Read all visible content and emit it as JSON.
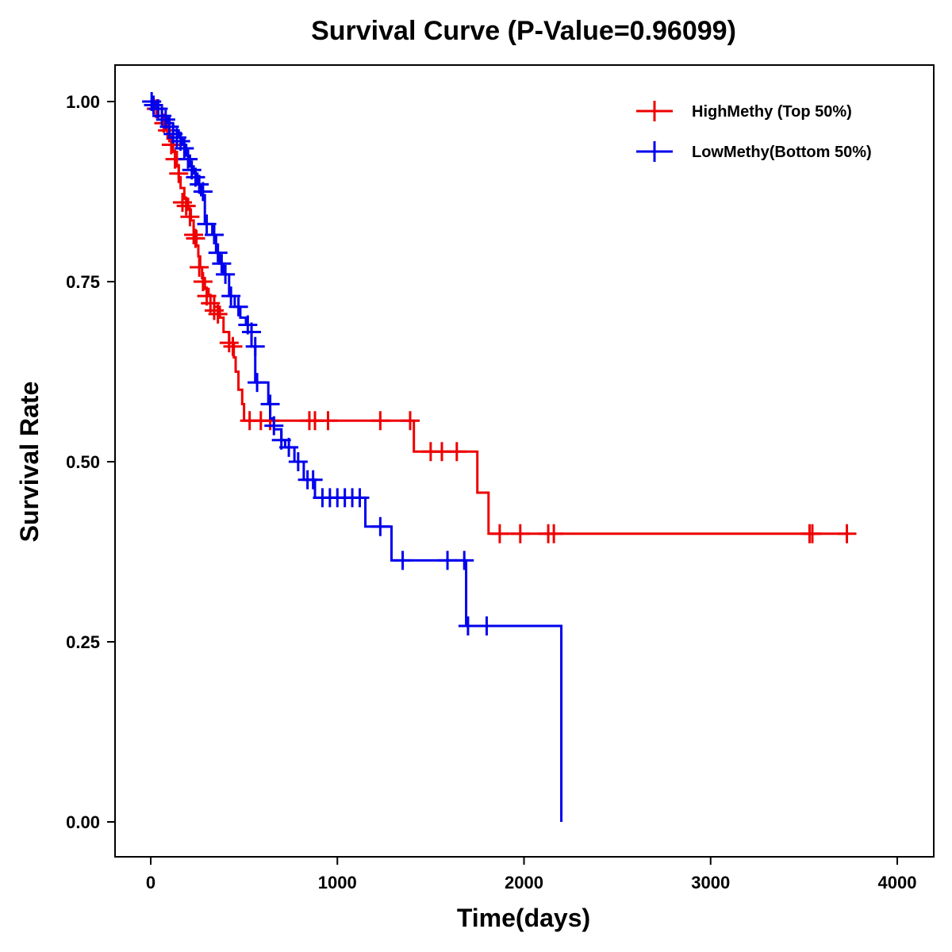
{
  "chart_data": {
    "type": "line",
    "title": "Survival Curve (P-Value=0.96099)",
    "xlabel": "Time(days)",
    "ylabel": "Survival Rate",
    "xlim": [
      -190,
      4200
    ],
    "ylim": [
      -0.048,
      1.05
    ],
    "xticks": [
      0,
      1000,
      2000,
      3000,
      4000
    ],
    "xtick_labels": [
      "0",
      "1000",
      "2000",
      "3000",
      "4000"
    ],
    "yticks": [
      0,
      0.25,
      0.5,
      0.75,
      1.0
    ],
    "ytick_labels": [
      "0.00",
      "0.25",
      "0.50",
      "0.75",
      "1.00"
    ],
    "grid": false,
    "legend_position": "top-right",
    "series": [
      {
        "name": "HighMethy (Top 50%)",
        "color": "#ee0000",
        "steps": [
          [
            0,
            1.0
          ],
          [
            20,
            0.99
          ],
          [
            40,
            0.98
          ],
          [
            60,
            0.97
          ],
          [
            80,
            0.96
          ],
          [
            100,
            0.945
          ],
          [
            120,
            0.93
          ],
          [
            140,
            0.91
          ],
          [
            150,
            0.895
          ],
          [
            160,
            0.88
          ],
          [
            180,
            0.865
          ],
          [
            200,
            0.85
          ],
          [
            215,
            0.835
          ],
          [
            230,
            0.82
          ],
          [
            245,
            0.8
          ],
          [
            255,
            0.785
          ],
          [
            265,
            0.77
          ],
          [
            275,
            0.755
          ],
          [
            290,
            0.74
          ],
          [
            310,
            0.73
          ],
          [
            340,
            0.715
          ],
          [
            370,
            0.7
          ],
          [
            390,
            0.68
          ],
          [
            420,
            0.665
          ],
          [
            445,
            0.645
          ],
          [
            455,
            0.625
          ],
          [
            470,
            0.6
          ],
          [
            490,
            0.58
          ],
          [
            500,
            0.557
          ],
          [
            1410,
            0.514
          ],
          [
            1750,
            0.457
          ],
          [
            1810,
            0.4
          ]
        ],
        "end_time": 3740,
        "censored": [
          [
            30,
            0.99
          ],
          [
            70,
            0.97
          ],
          [
            90,
            0.96
          ],
          [
            110,
            0.94
          ],
          [
            130,
            0.92
          ],
          [
            150,
            0.9
          ],
          [
            170,
            0.86
          ],
          [
            190,
            0.855
          ],
          [
            210,
            0.84
          ],
          [
            230,
            0.815
          ],
          [
            240,
            0.81
          ],
          [
            260,
            0.77
          ],
          [
            280,
            0.75
          ],
          [
            300,
            0.73
          ],
          [
            320,
            0.72
          ],
          [
            340,
            0.71
          ],
          [
            360,
            0.705
          ],
          [
            420,
            0.665
          ],
          [
            440,
            0.66
          ],
          [
            530,
            0.557
          ],
          [
            590,
            0.557
          ],
          [
            640,
            0.557
          ],
          [
            850,
            0.557
          ],
          [
            880,
            0.557
          ],
          [
            950,
            0.557
          ],
          [
            1230,
            0.557
          ],
          [
            1390,
            0.557
          ],
          [
            1500,
            0.514
          ],
          [
            1560,
            0.514
          ],
          [
            1640,
            0.514
          ],
          [
            1870,
            0.4
          ],
          [
            1980,
            0.4
          ],
          [
            2130,
            0.4
          ],
          [
            2160,
            0.4
          ],
          [
            3530,
            0.4
          ],
          [
            3545,
            0.4
          ],
          [
            3730,
            0.4
          ]
        ]
      },
      {
        "name": "LowMethy(Bottom 50%)",
        "color": "#0000ee",
        "steps": [
          [
            0,
            1.0
          ],
          [
            30,
            0.99
          ],
          [
            60,
            0.98
          ],
          [
            90,
            0.97
          ],
          [
            120,
            0.96
          ],
          [
            150,
            0.95
          ],
          [
            170,
            0.94
          ],
          [
            190,
            0.925
          ],
          [
            210,
            0.91
          ],
          [
            230,
            0.9
          ],
          [
            250,
            0.885
          ],
          [
            270,
            0.87
          ],
          [
            290,
            0.83
          ],
          [
            330,
            0.815
          ],
          [
            350,
            0.79
          ],
          [
            370,
            0.775
          ],
          [
            390,
            0.76
          ],
          [
            420,
            0.73
          ],
          [
            450,
            0.715
          ],
          [
            480,
            0.7
          ],
          [
            510,
            0.69
          ],
          [
            540,
            0.66
          ],
          [
            560,
            0.61
          ],
          [
            630,
            0.58
          ],
          [
            640,
            0.56
          ],
          [
            660,
            0.545
          ],
          [
            700,
            0.53
          ],
          [
            720,
            0.52
          ],
          [
            770,
            0.5
          ],
          [
            820,
            0.475
          ],
          [
            880,
            0.45
          ],
          [
            1150,
            0.41
          ],
          [
            1290,
            0.363
          ],
          [
            1690,
            0.272
          ],
          [
            2200,
            0.0
          ]
        ],
        "end_time": 2200,
        "censored": [
          [
            5,
            1.0
          ],
          [
            15,
            0.995
          ],
          [
            40,
            0.99
          ],
          [
            60,
            0.98
          ],
          [
            80,
            0.975
          ],
          [
            100,
            0.965
          ],
          [
            120,
            0.955
          ],
          [
            140,
            0.95
          ],
          [
            160,
            0.945
          ],
          [
            180,
            0.935
          ],
          [
            200,
            0.92
          ],
          [
            220,
            0.905
          ],
          [
            240,
            0.895
          ],
          [
            260,
            0.885
          ],
          [
            280,
            0.875
          ],
          [
            300,
            0.83
          ],
          [
            340,
            0.815
          ],
          [
            360,
            0.79
          ],
          [
            380,
            0.775
          ],
          [
            400,
            0.76
          ],
          [
            430,
            0.73
          ],
          [
            470,
            0.715
          ],
          [
            520,
            0.69
          ],
          [
            540,
            0.68
          ],
          [
            560,
            0.66
          ],
          [
            570,
            0.61
          ],
          [
            640,
            0.58
          ],
          [
            660,
            0.55
          ],
          [
            700,
            0.53
          ],
          [
            740,
            0.52
          ],
          [
            790,
            0.5
          ],
          [
            840,
            0.475
          ],
          [
            870,
            0.475
          ],
          [
            920,
            0.45
          ],
          [
            960,
            0.45
          ],
          [
            1000,
            0.45
          ],
          [
            1040,
            0.45
          ],
          [
            1080,
            0.45
          ],
          [
            1120,
            0.45
          ],
          [
            1230,
            0.41
          ],
          [
            1350,
            0.363
          ],
          [
            1590,
            0.363
          ],
          [
            1680,
            0.363
          ],
          [
            1700,
            0.272
          ],
          [
            1800,
            0.272
          ]
        ]
      }
    ]
  }
}
